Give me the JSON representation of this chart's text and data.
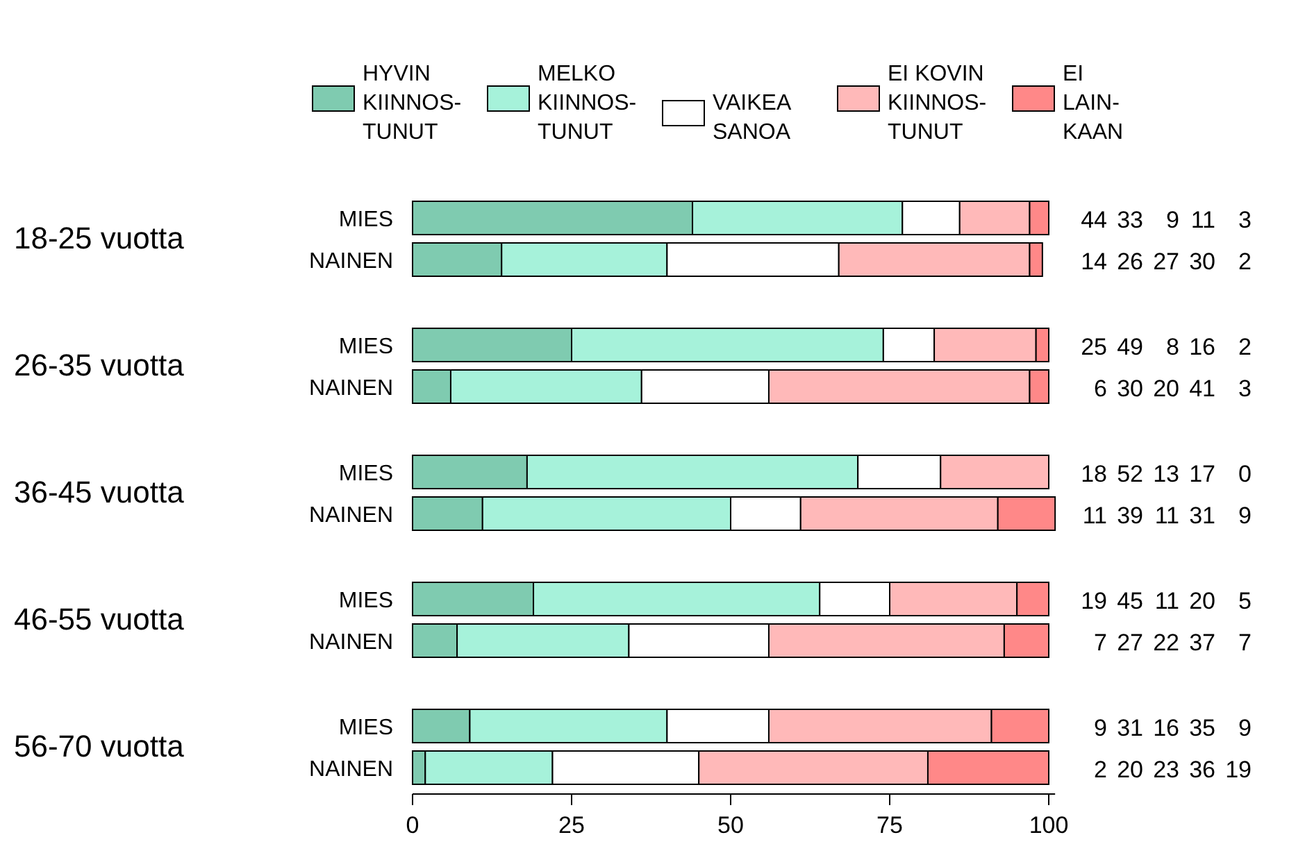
{
  "chart_data": {
    "type": "bar",
    "orientation": "horizontal",
    "stacked": true,
    "categories": [
      "MIES",
      "NAINEN",
      "MIES",
      "NAINEN",
      "MIES",
      "NAINEN",
      "MIES",
      "NAINEN",
      "MIES",
      "NAINEN"
    ],
    "annotations": [
      "18-25 vuotta",
      "26-35 vuotta",
      "36-45 vuotta",
      "46-55 vuotta",
      "56-70 vuotta"
    ],
    "xlim": [
      0,
      101
    ],
    "xticks": [
      0,
      25,
      50,
      75,
      100
    ],
    "legend": "top",
    "data_labels": true,
    "grid": false,
    "series": [
      {
        "name": "HYVIN\nKIINNOS-\nTUNUT",
        "color": "#7fcbb0",
        "values": [
          44,
          14,
          25,
          6,
          18,
          11,
          19,
          7,
          9,
          2
        ]
      },
      {
        "name": "MELKO\nKIINNOS-\nTUNUT",
        "color": "#a6f2da",
        "values": [
          33,
          26,
          49,
          30,
          52,
          39,
          45,
          27,
          31,
          20
        ]
      },
      {
        "name": "VAIKEA\nSANOA",
        "color": "#ffffff",
        "values": [
          9,
          27,
          8,
          20,
          13,
          11,
          11,
          22,
          16,
          23
        ]
      },
      {
        "name": "EI KOVIN\nKIINNOS-\nTUNUT",
        "color": "#ffb9b9",
        "values": [
          11,
          30,
          16,
          41,
          17,
          31,
          20,
          37,
          35,
          36
        ]
      },
      {
        "name": "EI\nLAIN-\nKAAN",
        "color": "#ff8888",
        "values": [
          3,
          2,
          2,
          3,
          0,
          9,
          5,
          7,
          9,
          19
        ]
      }
    ]
  }
}
